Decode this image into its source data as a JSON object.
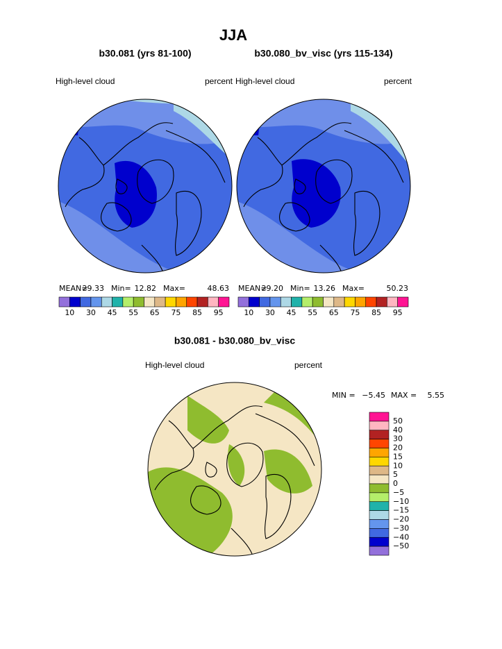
{
  "header": {
    "title": "JJA"
  },
  "panels": [
    {
      "title": "b30.081 (yrs 81-100)",
      "variable": "High-level cloud",
      "units": "percent",
      "stats": [
        {
          "label": "MEAN=",
          "value": "29.33"
        },
        {
          "label": "Min=",
          "value": "12.82"
        },
        {
          "label": "Max=",
          "value": "48.63"
        }
      ]
    },
    {
      "title": "b30.080_bv_visc (yrs 115-134)",
      "variable": "High-level cloud",
      "units": "percent",
      "stats": [
        {
          "label": "MEAN=",
          "value": "29.20"
        },
        {
          "label": "Min=",
          "value": "13.26"
        },
        {
          "label": "Max=",
          "value": "50.23"
        }
      ]
    }
  ],
  "colorbar": {
    "colors": [
      "#9370db",
      "#0000cd",
      "#4169e1",
      "#6495ed",
      "#add8e6",
      "#20b2aa",
      "#b4ee6a",
      "#8fbc2f",
      "#f5e6c4",
      "#deb887",
      "#ffd700",
      "#ffa500",
      "#ff4500",
      "#b22222",
      "#ffb6c1",
      "#ff1493"
    ],
    "labels": [
      "10",
      "30",
      "45",
      "55",
      "65",
      "75",
      "85",
      "95"
    ]
  },
  "difference": {
    "title": "b30.081 - b30.080_bv_visc",
    "variable": "High-level cloud",
    "units": "percent",
    "stats": [
      {
        "label": "MIN =",
        "value": "−5.45"
      },
      {
        "label": "MAX =",
        "value": "5.55"
      }
    ],
    "colorbar": {
      "colors": [
        "#ff1493",
        "#ffb6c1",
        "#b22222",
        "#ff4500",
        "#ffa500",
        "#ffd700",
        "#deb887",
        "#f5e6c4",
        "#8fbc2f",
        "#b4ee6a",
        "#20b2aa",
        "#add8e6",
        "#6495ed",
        "#4169e1",
        "#0000cd",
        "#9370db"
      ],
      "labels": [
        "50",
        "40",
        "30",
        "20",
        "15",
        "10",
        "5",
        "0",
        "−5",
        "−10",
        "−15",
        "−20",
        "−30",
        "−40",
        "−50"
      ]
    }
  }
}
